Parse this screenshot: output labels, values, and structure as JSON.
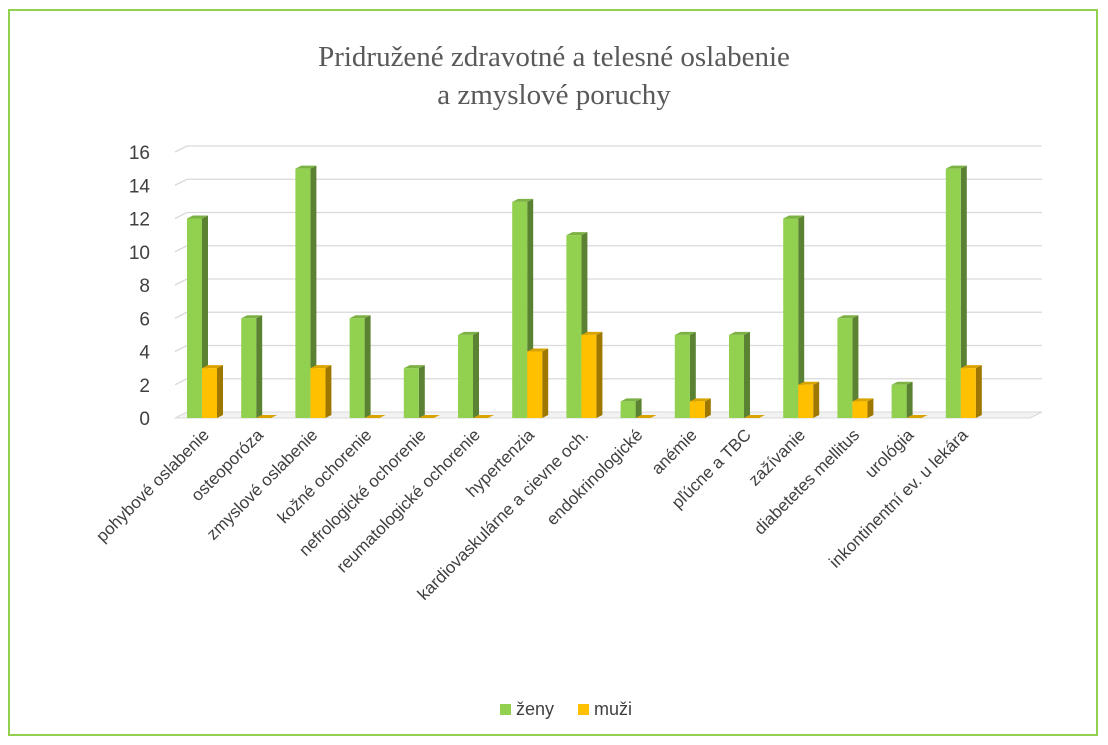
{
  "chart_data": {
    "type": "bar",
    "title_lines": [
      "Pridružené zdravotné a telesné oslabenie",
      "a zmyslové poruchy"
    ],
    "categories": [
      "pohybové oslabenie",
      "osteoporóza",
      "zmyslové oslabenie",
      "kožné ochorenie",
      "nefrologické ochorenie",
      "reumatologické ochorenie",
      "hypertenzia",
      "kardiovaskulárne a cievne och.",
      "endokrinologické",
      "anémie",
      "pľúcne a TBC",
      "zažívanie",
      "diabetetes mellitus",
      "urológia",
      "inkontinentní ev. u lekára"
    ],
    "series": [
      {
        "name": "ženy",
        "color": "#92d050",
        "values": [
          12,
          6,
          15,
          6,
          3,
          5,
          13,
          11,
          1,
          5,
          5,
          12,
          6,
          2,
          15
        ]
      },
      {
        "name": "muži",
        "color": "#ffc000",
        "values": [
          3,
          0,
          3,
          0,
          0,
          0,
          4,
          5,
          0,
          1,
          0,
          2,
          1,
          0,
          3
        ]
      }
    ],
    "yticks": [
      "0",
      "2",
      "4",
      "6",
      "8",
      "10",
      "12",
      "14",
      "16"
    ],
    "ylim": [
      0,
      16
    ],
    "grid": true,
    "legend_position": "bottom"
  }
}
